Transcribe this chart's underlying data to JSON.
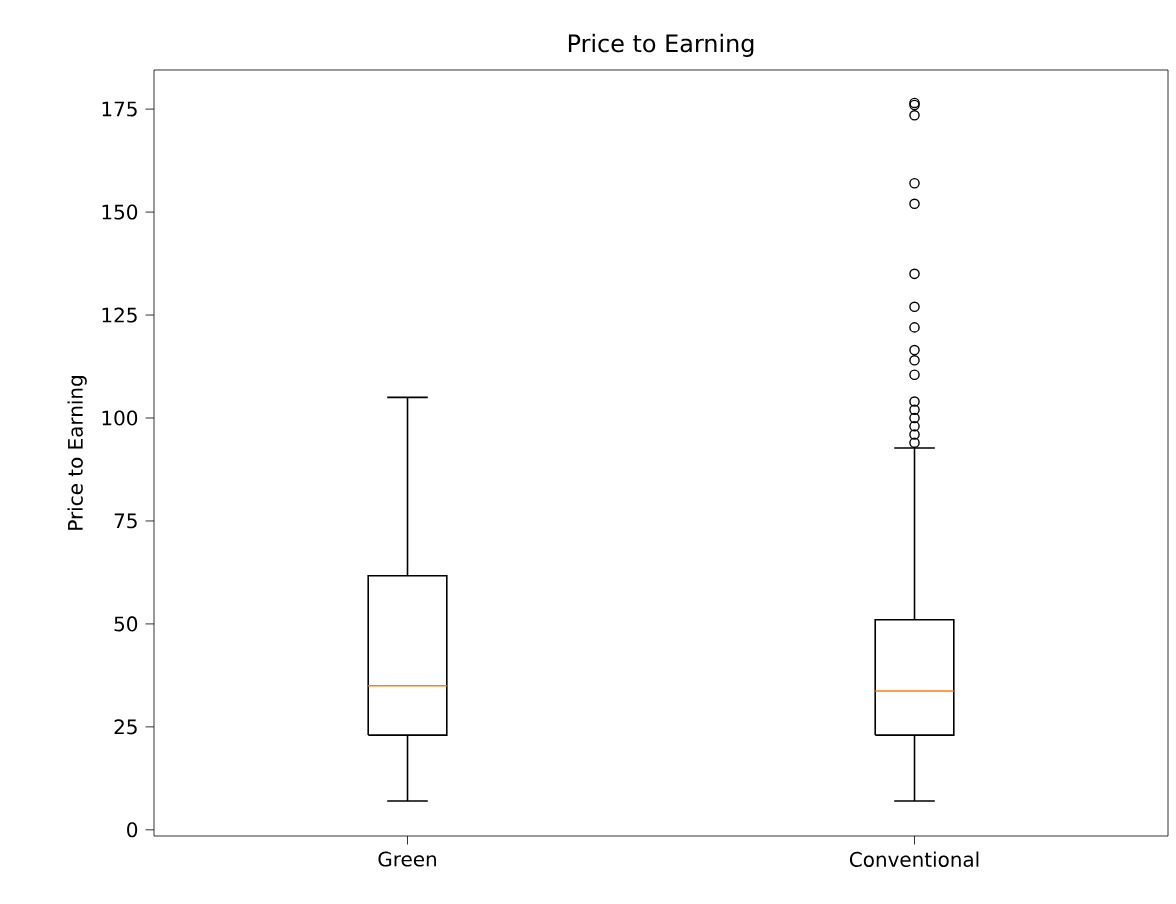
{
  "chart_data": {
    "type": "box",
    "title": "Price to Earning",
    "ylabel": "Price to Earning",
    "categories": [
      "Green",
      "Conventional"
    ],
    "boxes": [
      {
        "low": 7,
        "q1": 23,
        "median": 35,
        "q3": 61.7,
        "high": 105
      },
      {
        "low": 7,
        "q1": 23,
        "median": 33.7,
        "q3": 51,
        "high": 92.7,
        "outliers": [
          176.5,
          176,
          173.5,
          157,
          152,
          135,
          127,
          122,
          116.5,
          114,
          110.5,
          104,
          102,
          100,
          98,
          96,
          94
        ]
      }
    ],
    "marker": "circle",
    "ylim": [
      -1.5,
      184.5
    ],
    "yticks": [
      0,
      25,
      50,
      75,
      100,
      125,
      150,
      175
    ]
  }
}
